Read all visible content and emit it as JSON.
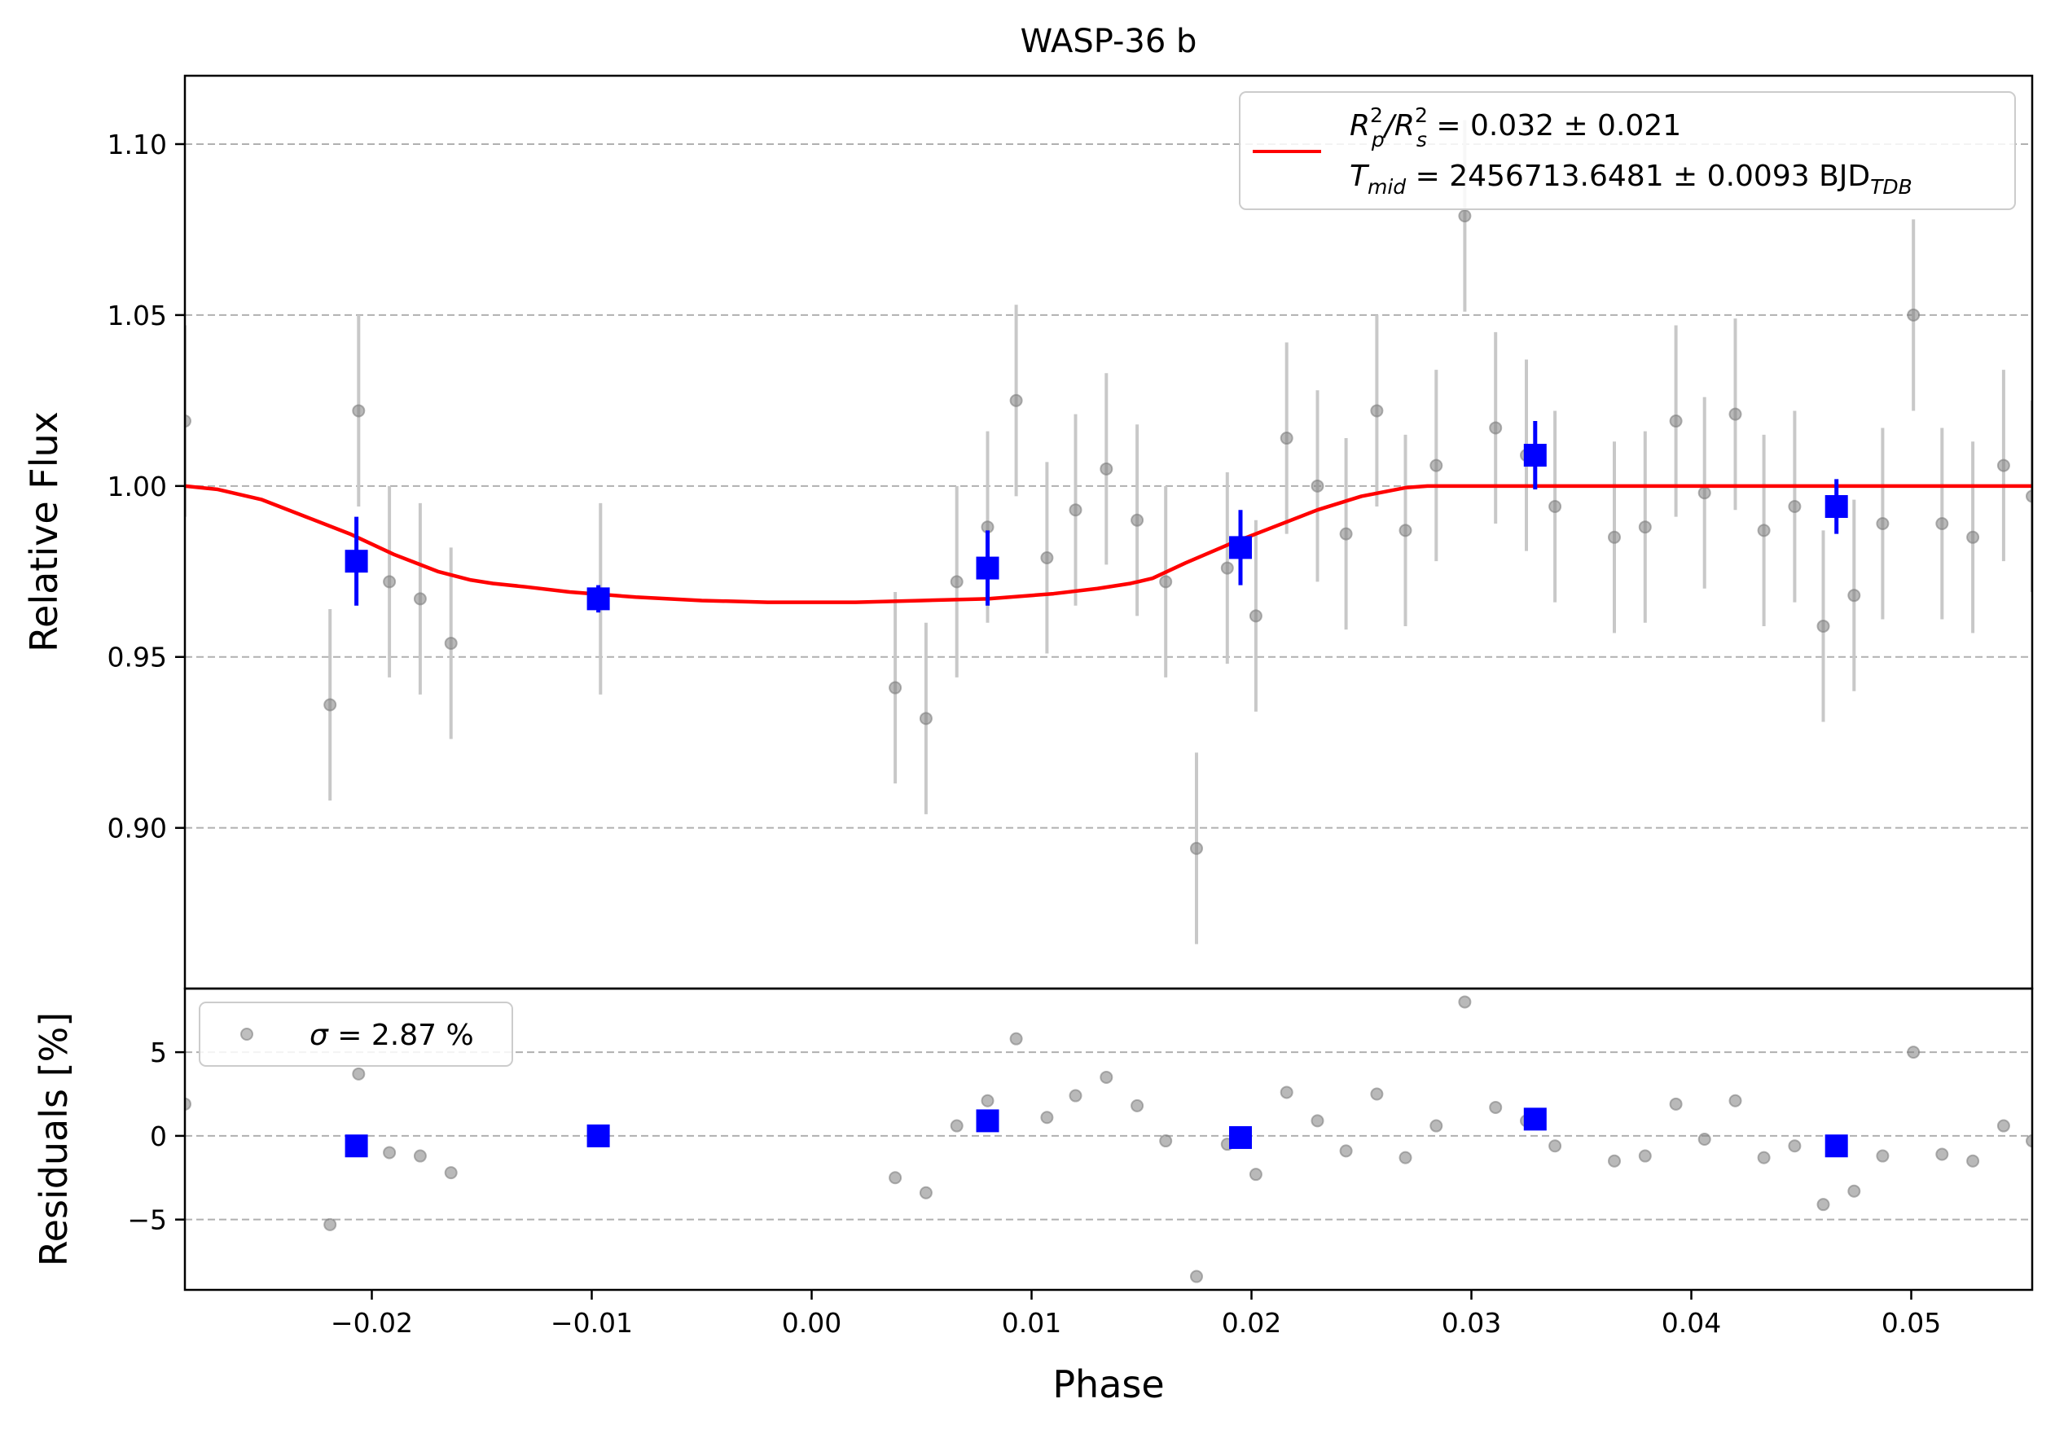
{
  "chart_data": {
    "type": "scatter",
    "title": "WASP-36 b",
    "xlabel": "Phase",
    "xlim": [
      -0.0285,
      0.0555
    ],
    "x_ticks": [
      -0.02,
      -0.01,
      0.0,
      0.01,
      0.02,
      0.03,
      0.04,
      0.05
    ],
    "x_tick_labels": [
      "−0.02",
      "−0.01",
      "0.00",
      "0.01",
      "0.02",
      "0.03",
      "0.04",
      "0.05"
    ],
    "grid": "horizontal dashed",
    "colors": {
      "raw": "#808080",
      "raw_err": "#c8c8c8",
      "binned": "#0000ff",
      "model": "#ff0000",
      "grid": "#b0b0b0"
    },
    "flux_panel": {
      "ylabel": "Relative Flux",
      "ylim": [
        0.853,
        1.12
      ],
      "y_ticks": [
        0.9,
        0.95,
        1.0,
        1.05,
        1.1
      ],
      "y_tick_labels": [
        "0.90",
        "0.95",
        "1.00",
        "1.05",
        "1.10"
      ],
      "legend": {
        "placement": "upper-right",
        "entry": "model",
        "line1": {
          "p1": "R",
          "p1sup": "2",
          "p1sub": "p",
          "mid": "/R",
          "p2sup": "2",
          "p2sub": "s",
          "rest": " = 0.032 ± 0.021"
        },
        "line2": {
          "p1": "T",
          "p1sub": "mid",
          "rest": " = 2456713.6481 ± 0.0093 BJD",
          "p2sub": "TDB"
        }
      },
      "raw": {
        "x": [
          -0.0285,
          -0.0219,
          -0.0206,
          -0.0192,
          -0.0178,
          -0.0164,
          -0.0096,
          0.0038,
          0.0052,
          0.0066,
          0.008,
          0.0093,
          0.0107,
          0.012,
          0.0134,
          0.0148,
          0.0161,
          0.0175,
          0.0189,
          0.0202,
          0.0216,
          0.023,
          0.0243,
          0.0257,
          0.027,
          0.0284,
          0.0297,
          0.0311,
          0.0325,
          0.0338,
          0.0365,
          0.0379,
          0.0393,
          0.0406,
          0.042,
          0.0433,
          0.0447,
          0.046,
          0.0474,
          0.0487,
          0.0501,
          0.0514,
          0.0528,
          0.0542,
          0.0555
        ],
        "y": [
          1.019,
          0.936,
          1.022,
          0.972,
          0.967,
          0.954,
          0.967,
          0.941,
          0.932,
          0.972,
          0.988,
          1.025,
          0.979,
          0.993,
          1.005,
          0.99,
          0.972,
          0.894,
          0.976,
          0.962,
          1.014,
          1.0,
          0.986,
          1.022,
          0.987,
          1.006,
          1.079,
          1.017,
          1.009,
          0.994,
          0.985,
          0.988,
          1.019,
          0.998,
          1.021,
          0.987,
          0.994,
          0.959,
          0.968,
          0.989,
          1.05,
          0.989,
          0.985,
          1.006,
          0.997
        ],
        "yerr": 0.028
      },
      "binned": {
        "x": [
          -0.0207,
          -0.0097,
          0.008,
          0.0195,
          0.0329,
          0.0466
        ],
        "y": [
          0.978,
          0.967,
          0.976,
          0.982,
          1.009,
          0.994
        ],
        "yerr": [
          0.013,
          0.004,
          0.011,
          0.011,
          0.01,
          0.008
        ]
      },
      "model": {
        "x": [
          -0.0285,
          -0.027,
          -0.025,
          -0.023,
          -0.021,
          -0.019,
          -0.017,
          -0.0155,
          -0.0145,
          -0.013,
          -0.011,
          -0.008,
          -0.005,
          -0.002,
          0.0,
          0.002,
          0.005,
          0.008,
          0.011,
          0.013,
          0.0145,
          0.0155,
          0.017,
          0.019,
          0.021,
          0.023,
          0.025,
          0.027,
          0.028,
          0.0285,
          0.0555
        ],
        "y": [
          1.0,
          0.999,
          0.996,
          0.991,
          0.986,
          0.98,
          0.975,
          0.9725,
          0.9715,
          0.9705,
          0.969,
          0.9675,
          0.9665,
          0.966,
          0.966,
          0.966,
          0.9665,
          0.967,
          0.9685,
          0.97,
          0.9715,
          0.973,
          0.9775,
          0.983,
          0.988,
          0.993,
          0.997,
          0.9995,
          1.0,
          1.0,
          1.0
        ]
      }
    },
    "residual_panel": {
      "ylabel": "Residuals [%]",
      "ylim": [
        -9.2,
        8.8
      ],
      "y_ticks": [
        -5,
        0,
        5
      ],
      "y_tick_labels": [
        "−5",
        "0",
        "5"
      ],
      "legend": {
        "placement": "upper-left",
        "sym": "σ",
        "rest": " = 2.87 %"
      },
      "raw_y": [
        1.9,
        -5.3,
        3.7,
        -1.0,
        -1.2,
        -2.2,
        0.0,
        -2.5,
        -3.4,
        0.6,
        2.1,
        5.8,
        1.1,
        2.4,
        3.5,
        1.8,
        -0.3,
        -8.4,
        -0.5,
        -2.3,
        2.6,
        0.9,
        -0.9,
        2.5,
        -1.3,
        0.6,
        8.0,
        1.7,
        0.9,
        -0.6,
        -1.5,
        -1.2,
        1.9,
        -0.2,
        2.1,
        -1.3,
        -0.6,
        -4.1,
        -3.3,
        -1.2,
        5.0,
        -1.1,
        -1.5,
        0.6,
        -0.3
      ],
      "binned_y": [
        -0.6,
        0.0,
        0.9,
        -0.1,
        1.0,
        -0.6
      ]
    }
  }
}
